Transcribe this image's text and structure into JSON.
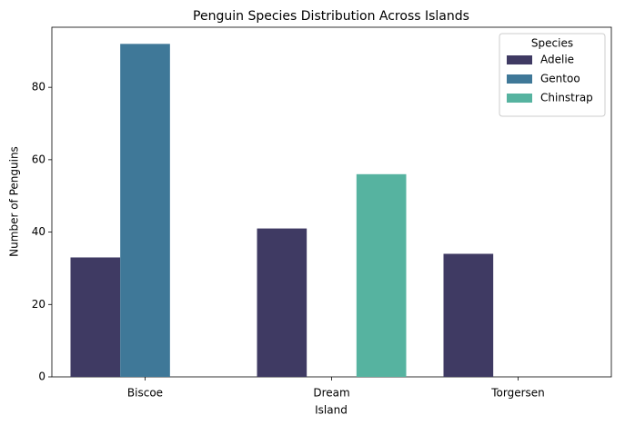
{
  "chart_data": {
    "type": "bar",
    "title": "Penguin Species Distribution Across Islands",
    "x_label": "Island",
    "y_label": "Number of Penguins",
    "categories": [
      "Biscoe",
      "Dream",
      "Torgersen"
    ],
    "series": [
      {
        "name": "Adelie",
        "color": "#3f3a63",
        "values": [
          33,
          41,
          34
        ]
      },
      {
        "name": "Gentoo",
        "color": "#3f7898",
        "values": [
          92,
          null,
          null
        ]
      },
      {
        "name": "Chinstrap",
        "color": "#56b3a0",
        "values": [
          null,
          56,
          null
        ]
      }
    ],
    "ylim": [
      0,
      96.6
    ],
    "yticks": [
      0,
      20,
      40,
      60,
      80
    ],
    "legend_title": "Species",
    "legend": "upper right",
    "grid": false
  }
}
